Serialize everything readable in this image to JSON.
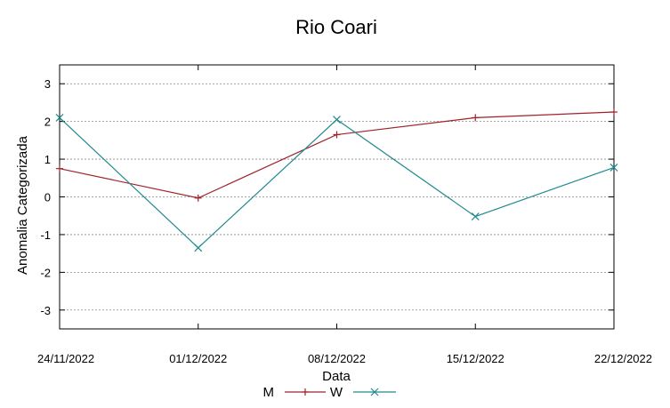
{
  "chart_data": {
    "type": "line",
    "title": "Rio Coari",
    "xlabel": "Data",
    "ylabel": "Anomalia Categorizada",
    "categories": [
      "24/11/2022",
      "01/12/2022",
      "08/12/2022",
      "15/12/2022",
      "22/12/2022"
    ],
    "ylim": [
      -3.5,
      3.5
    ],
    "yticks": [
      3,
      2,
      1,
      0,
      -1,
      -2,
      -3
    ],
    "ytick_labels": [
      "3",
      "2",
      "1",
      "0",
      "-1",
      "-2",
      "-3"
    ],
    "grid": true,
    "legend_position": "bottom",
    "series": [
      {
        "name": "M",
        "marker": "plus",
        "color": "#a0222a",
        "values": [
          0.75,
          -0.03,
          1.65,
          2.1,
          2.25
        ]
      },
      {
        "name": "W",
        "marker": "cross",
        "color": "#1f8a8f",
        "values": [
          2.1,
          -1.35,
          2.05,
          -0.52,
          0.78
        ]
      }
    ]
  }
}
